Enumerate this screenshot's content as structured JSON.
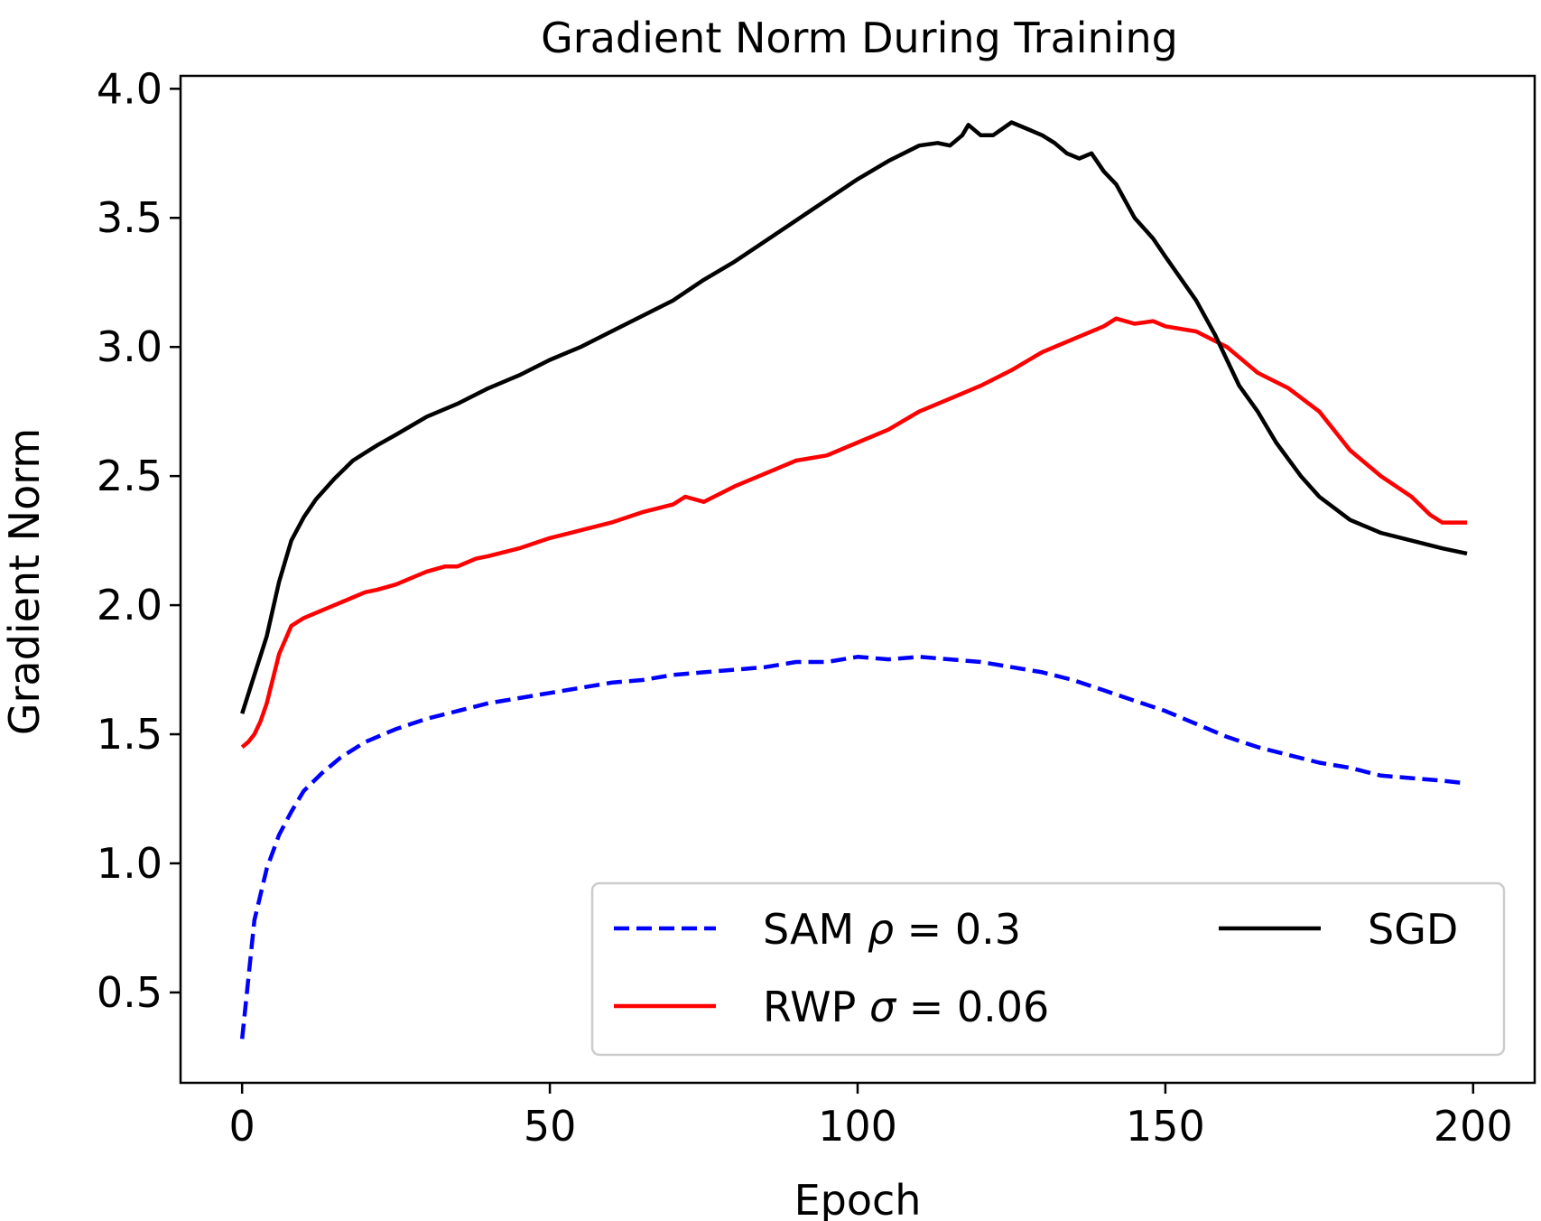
{
  "chart_data": {
    "type": "line",
    "title": "Gradient Norm During Training",
    "xlabel": "Epoch",
    "ylabel": "Gradient Norm",
    "xlim": [
      -10,
      210
    ],
    "ylim": [
      0.15,
      4.05
    ],
    "xticks": [
      0,
      50,
      100,
      150,
      200
    ],
    "xtick_labels": [
      "0",
      "50",
      "100",
      "150",
      "200"
    ],
    "yticks": [
      0.5,
      1.0,
      1.5,
      2.0,
      2.5,
      3.0,
      3.5,
      4.0
    ],
    "ytick_labels": [
      "0.5",
      "1.0",
      "1.5",
      "2.0",
      "2.5",
      "3.0",
      "3.5",
      "4.0"
    ],
    "grid": false,
    "legend": {
      "position": "lower-right",
      "columns": 2,
      "entries": [
        {
          "series": "SAM",
          "label_main": "SAM ",
          "label_sym": "ρ",
          "label_tail": " = 0.3"
        },
        {
          "series": "RWP",
          "label_main": "RWP ",
          "label_sym": "σ",
          "label_tail": " = 0.06"
        },
        {
          "series": "SGD",
          "label_main": "SGD",
          "label_sym": "",
          "label_tail": ""
        }
      ]
    },
    "series": [
      {
        "name": "SAM",
        "color": "#0000ff",
        "style": "dashed",
        "x": [
          0,
          2,
          4,
          6,
          8,
          10,
          13,
          16,
          20,
          25,
          30,
          35,
          40,
          45,
          50,
          55,
          60,
          65,
          70,
          75,
          80,
          85,
          90,
          95,
          100,
          105,
          110,
          115,
          120,
          125,
          130,
          135,
          140,
          145,
          150,
          155,
          160,
          165,
          170,
          175,
          180,
          185,
          190,
          195,
          199
        ],
        "y": [
          0.32,
          0.78,
          0.98,
          1.11,
          1.2,
          1.28,
          1.35,
          1.41,
          1.47,
          1.52,
          1.56,
          1.59,
          1.62,
          1.64,
          1.66,
          1.68,
          1.7,
          1.71,
          1.73,
          1.74,
          1.75,
          1.76,
          1.78,
          1.78,
          1.8,
          1.79,
          1.8,
          1.79,
          1.78,
          1.76,
          1.74,
          1.71,
          1.67,
          1.63,
          1.59,
          1.54,
          1.49,
          1.45,
          1.42,
          1.39,
          1.37,
          1.34,
          1.33,
          1.32,
          1.31
        ]
      },
      {
        "name": "RWP",
        "color": "#ff0000",
        "style": "solid",
        "x": [
          0,
          1,
          2,
          3,
          4,
          6,
          8,
          10,
          12,
          15,
          18,
          20,
          22,
          25,
          28,
          30,
          33,
          35,
          38,
          40,
          45,
          50,
          55,
          60,
          65,
          70,
          72,
          75,
          80,
          85,
          90,
          95,
          100,
          105,
          110,
          115,
          120,
          125,
          130,
          135,
          140,
          142,
          145,
          148,
          150,
          155,
          160,
          165,
          170,
          175,
          180,
          185,
          190,
          193,
          195,
          199
        ],
        "y": [
          1.45,
          1.47,
          1.5,
          1.55,
          1.62,
          1.81,
          1.92,
          1.95,
          1.97,
          2.0,
          2.03,
          2.05,
          2.06,
          2.08,
          2.11,
          2.13,
          2.15,
          2.15,
          2.18,
          2.19,
          2.22,
          2.26,
          2.29,
          2.32,
          2.36,
          2.39,
          2.42,
          2.4,
          2.46,
          2.51,
          2.56,
          2.58,
          2.63,
          2.68,
          2.75,
          2.8,
          2.85,
          2.91,
          2.98,
          3.03,
          3.08,
          3.11,
          3.09,
          3.1,
          3.08,
          3.06,
          3.0,
          2.9,
          2.84,
          2.75,
          2.6,
          2.5,
          2.42,
          2.35,
          2.32,
          2.32
        ]
      },
      {
        "name": "SGD",
        "color": "#000000",
        "style": "solid",
        "x": [
          0,
          2,
          4,
          6,
          8,
          10,
          12,
          15,
          18,
          20,
          22,
          25,
          30,
          35,
          40,
          45,
          50,
          55,
          60,
          65,
          70,
          75,
          80,
          85,
          90,
          95,
          100,
          105,
          110,
          113,
          115,
          117,
          118,
          120,
          122,
          125,
          128,
          130,
          132,
          134,
          136,
          138,
          140,
          142,
          145,
          148,
          150,
          155,
          158,
          160,
          162,
          165,
          168,
          172,
          175,
          180,
          185,
          190,
          195,
          199
        ],
        "y": [
          1.58,
          1.73,
          1.88,
          2.09,
          2.25,
          2.34,
          2.41,
          2.49,
          2.56,
          2.59,
          2.62,
          2.66,
          2.73,
          2.78,
          2.84,
          2.89,
          2.95,
          3.0,
          3.06,
          3.12,
          3.18,
          3.26,
          3.33,
          3.41,
          3.49,
          3.57,
          3.65,
          3.72,
          3.78,
          3.79,
          3.78,
          3.82,
          3.86,
          3.82,
          3.82,
          3.87,
          3.84,
          3.82,
          3.79,
          3.75,
          3.73,
          3.75,
          3.68,
          3.63,
          3.5,
          3.42,
          3.35,
          3.18,
          3.05,
          2.95,
          2.85,
          2.75,
          2.63,
          2.5,
          2.42,
          2.33,
          2.28,
          2.25,
          2.22,
          2.2
        ]
      }
    ]
  }
}
